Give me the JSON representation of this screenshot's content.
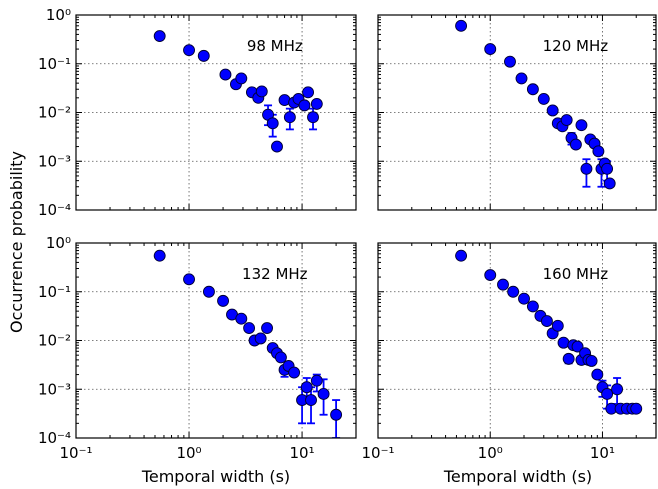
{
  "figure": {
    "ylabel": "Occurrence probability",
    "xlabel": "Temporal width (s)",
    "marker_color": "#0000ff",
    "edge_color": "#000033"
  },
  "chart_data": [
    {
      "type": "scatter",
      "label": "98 MHz",
      "xscale": "log",
      "yscale": "log",
      "xlim": [
        0.1,
        30
      ],
      "ylim": [
        0.0001,
        1
      ],
      "grid": true,
      "points": [
        {
          "x": 0.55,
          "y": 0.37
        },
        {
          "x": 1.0,
          "y": 0.19
        },
        {
          "x": 1.35,
          "y": 0.145
        },
        {
          "x": 2.1,
          "y": 0.06
        },
        {
          "x": 2.6,
          "y": 0.038
        },
        {
          "x": 2.9,
          "y": 0.05
        },
        {
          "x": 3.6,
          "y": 0.026
        },
        {
          "x": 4.1,
          "y": 0.02
        },
        {
          "x": 4.4,
          "y": 0.027
        },
        {
          "x": 5.0,
          "y": 0.009,
          "err": [
            0.0055,
            0.014
          ]
        },
        {
          "x": 5.5,
          "y": 0.006,
          "err": [
            0.0032,
            0.009
          ]
        },
        {
          "x": 6.0,
          "y": 0.002
        },
        {
          "x": 7.0,
          "y": 0.018
        },
        {
          "x": 7.8,
          "y": 0.008,
          "err": [
            0.0045,
            0.012
          ]
        },
        {
          "x": 8.5,
          "y": 0.016
        },
        {
          "x": 9.3,
          "y": 0.019
        },
        {
          "x": 10.5,
          "y": 0.014
        },
        {
          "x": 11.3,
          "y": 0.026
        },
        {
          "x": 12.5,
          "y": 0.008,
          "err": [
            0.0045,
            0.012
          ]
        },
        {
          "x": 13.5,
          "y": 0.015
        }
      ]
    },
    {
      "type": "scatter",
      "label": "120 MHz",
      "xscale": "log",
      "yscale": "log",
      "xlim": [
        0.1,
        30
      ],
      "ylim": [
        0.0001,
        1
      ],
      "grid": true,
      "points": [
        {
          "x": 0.55,
          "y": 0.6
        },
        {
          "x": 1.0,
          "y": 0.2
        },
        {
          "x": 1.5,
          "y": 0.11
        },
        {
          "x": 1.9,
          "y": 0.05
        },
        {
          "x": 2.4,
          "y": 0.03
        },
        {
          "x": 3.0,
          "y": 0.019
        },
        {
          "x": 3.6,
          "y": 0.011
        },
        {
          "x": 4.0,
          "y": 0.006
        },
        {
          "x": 4.4,
          "y": 0.0052
        },
        {
          "x": 4.8,
          "y": 0.007
        },
        {
          "x": 5.3,
          "y": 0.003,
          "err": [
            0.0022,
            0.0038
          ]
        },
        {
          "x": 5.8,
          "y": 0.0022
        },
        {
          "x": 6.5,
          "y": 0.0055
        },
        {
          "x": 7.2,
          "y": 0.0007,
          "err": [
            0.0003,
            0.0011
          ]
        },
        {
          "x": 7.8,
          "y": 0.0028
        },
        {
          "x": 8.5,
          "y": 0.0023
        },
        {
          "x": 9.2,
          "y": 0.0016
        },
        {
          "x": 9.8,
          "y": 0.0007,
          "err": [
            0.0003,
            0.0011
          ]
        },
        {
          "x": 10.5,
          "y": 0.0009
        },
        {
          "x": 11.0,
          "y": 0.0007,
          "err": [
            0.0004,
            0.001
          ]
        },
        {
          "x": 11.6,
          "y": 0.00035
        }
      ]
    },
    {
      "type": "scatter",
      "label": "132 MHz",
      "xscale": "log",
      "yscale": "log",
      "xlim": [
        0.1,
        30
      ],
      "ylim": [
        0.0001,
        1
      ],
      "grid": true,
      "points": [
        {
          "x": 0.55,
          "y": 0.55
        },
        {
          "x": 1.0,
          "y": 0.18
        },
        {
          "x": 1.5,
          "y": 0.1
        },
        {
          "x": 2.0,
          "y": 0.065
        },
        {
          "x": 2.4,
          "y": 0.034
        },
        {
          "x": 2.9,
          "y": 0.028
        },
        {
          "x": 3.4,
          "y": 0.018
        },
        {
          "x": 3.8,
          "y": 0.01
        },
        {
          "x": 4.3,
          "y": 0.011
        },
        {
          "x": 4.9,
          "y": 0.018
        },
        {
          "x": 5.5,
          "y": 0.007
        },
        {
          "x": 6.0,
          "y": 0.0055
        },
        {
          "x": 6.5,
          "y": 0.0045
        },
        {
          "x": 7.0,
          "y": 0.0025,
          "err": [
            0.0018,
            0.003
          ]
        },
        {
          "x": 7.6,
          "y": 0.003
        },
        {
          "x": 8.5,
          "y": 0.0022
        },
        {
          "x": 10.0,
          "y": 0.0006,
          "err": [
            0.0002,
            0.0011
          ]
        },
        {
          "x": 11.0,
          "y": 0.0011,
          "err": [
            0.0006,
            0.0017
          ]
        },
        {
          "x": 12.0,
          "y": 0.0006,
          "err": [
            0.0002,
            0.0011
          ]
        },
        {
          "x": 13.5,
          "y": 0.0015,
          "err": [
            0.0009,
            0.002
          ]
        },
        {
          "x": 15.5,
          "y": 0.0008,
          "err": [
            0.0003,
            0.0016
          ]
        },
        {
          "x": 20.0,
          "y": 0.0003,
          "err": [
            0.0001,
            0.0006
          ]
        }
      ]
    },
    {
      "type": "scatter",
      "label": "160 MHz",
      "xscale": "log",
      "yscale": "log",
      "xlim": [
        0.1,
        30
      ],
      "ylim": [
        0.0001,
        1
      ],
      "grid": true,
      "points": [
        {
          "x": 0.55,
          "y": 0.55
        },
        {
          "x": 1.0,
          "y": 0.22
        },
        {
          "x": 1.3,
          "y": 0.14
        },
        {
          "x": 1.6,
          "y": 0.1
        },
        {
          "x": 2.0,
          "y": 0.072
        },
        {
          "x": 2.4,
          "y": 0.05
        },
        {
          "x": 2.8,
          "y": 0.032
        },
        {
          "x": 3.2,
          "y": 0.025
        },
        {
          "x": 3.6,
          "y": 0.014
        },
        {
          "x": 4.0,
          "y": 0.02
        },
        {
          "x": 4.5,
          "y": 0.009
        },
        {
          "x": 5.0,
          "y": 0.0042,
          "err": [
            0.0034,
            0.005
          ]
        },
        {
          "x": 5.5,
          "y": 0.008
        },
        {
          "x": 6.0,
          "y": 0.0075
        },
        {
          "x": 6.5,
          "y": 0.004,
          "err": [
            0.0033,
            0.0047
          ]
        },
        {
          "x": 7.0,
          "y": 0.0055
        },
        {
          "x": 7.5,
          "y": 0.004
        },
        {
          "x": 8.0,
          "y": 0.0038
        },
        {
          "x": 9.0,
          "y": 0.002
        },
        {
          "x": 10.0,
          "y": 0.0011,
          "err": [
            0.0007,
            0.0015
          ]
        },
        {
          "x": 11.0,
          "y": 0.0008,
          "err": [
            0.0004,
            0.0012
          ]
        },
        {
          "x": 12.0,
          "y": 0.0004
        },
        {
          "x": 13.5,
          "y": 0.001,
          "err": [
            0.0005,
            0.0017
          ]
        },
        {
          "x": 14.5,
          "y": 0.0004
        },
        {
          "x": 16.5,
          "y": 0.0004
        },
        {
          "x": 18.5,
          "y": 0.0004
        },
        {
          "x": 20.0,
          "y": 0.0004
        }
      ]
    }
  ]
}
